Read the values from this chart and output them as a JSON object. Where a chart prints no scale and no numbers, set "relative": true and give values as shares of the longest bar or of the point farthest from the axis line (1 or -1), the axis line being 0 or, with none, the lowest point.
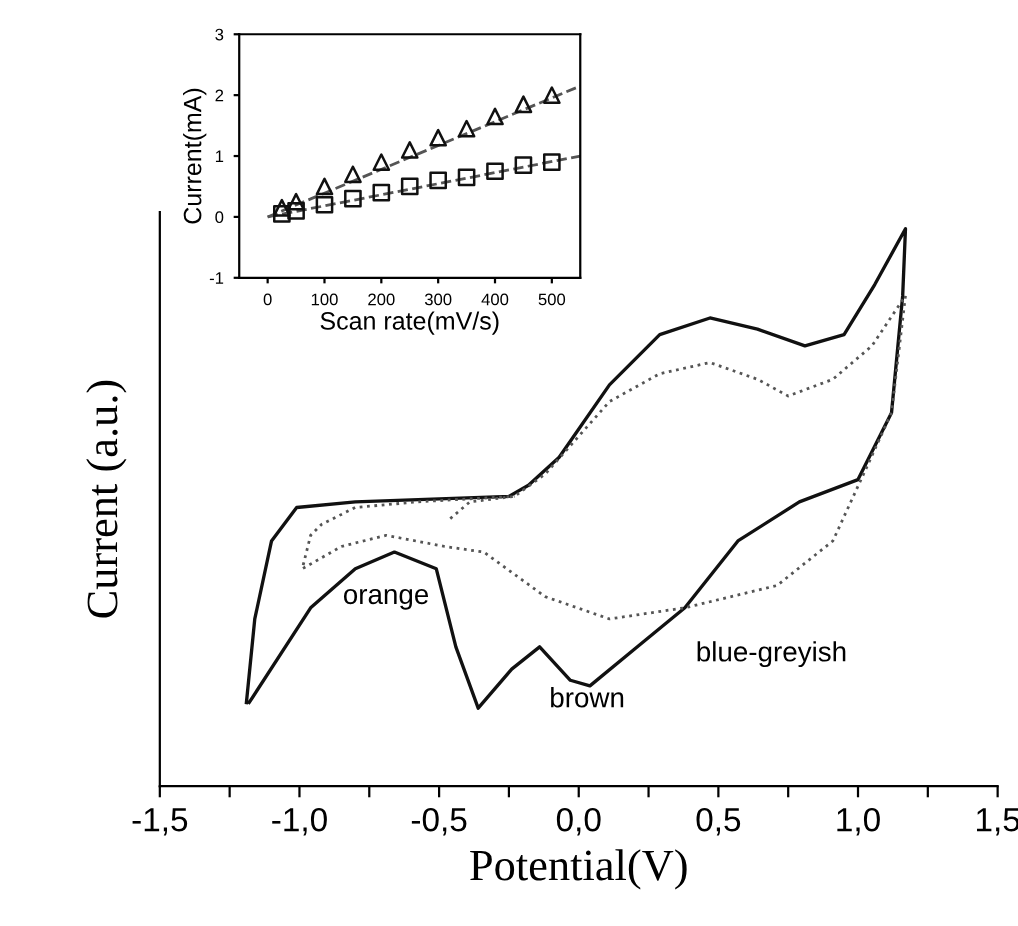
{
  "chart_data": [
    {
      "type": "line",
      "relative": true,
      "xlabel": "Potential(V)",
      "ylabel": "Current (a.u.)",
      "xlim": [
        -1.5,
        1.5
      ],
      "xticks": [
        {
          "value": -1.5,
          "label": "-1,5"
        },
        {
          "value": -1.25,
          "label": null
        },
        {
          "value": -1.0,
          "label": "-1,0"
        },
        {
          "value": -0.75,
          "label": null
        },
        {
          "value": -0.5,
          "label": "-0,5"
        },
        {
          "value": -0.25,
          "label": null
        },
        {
          "value": 0.0,
          "label": "0,0"
        },
        {
          "value": 0.25,
          "label": null
        },
        {
          "value": 0.5,
          "label": "0,5"
        },
        {
          "value": 0.75,
          "label": null
        },
        {
          "value": 1.0,
          "label": "1,0"
        },
        {
          "value": 1.25,
          "label": null
        },
        {
          "value": 1.5,
          "label": "1,5"
        }
      ],
      "tick_labels": "x",
      "grid": false,
      "legend": false,
      "series": [
        {
          "color": "#111111",
          "line_style": "solid",
          "x": [
            -1.19,
            -1.16,
            -1.1,
            -1.01,
            -0.8,
            -0.25,
            -0.18,
            -0.07,
            0.11,
            0.29,
            0.47,
            0.64,
            0.81,
            0.95,
            1.06,
            1.17,
            1.16,
            1.12,
            1.0,
            0.79,
            0.57,
            0.38,
            0.21,
            0.04,
            -0.03,
            -0.14,
            -0.24,
            -0.36,
            -0.44,
            -0.51,
            -0.66,
            -0.8,
            -0.96,
            -1.18
          ],
          "values": [
            0.15,
            0.3,
            0.44,
            0.5,
            0.51,
            0.52,
            0.54,
            0.59,
            0.72,
            0.81,
            0.84,
            0.82,
            0.79,
            0.81,
            0.9,
            1.0,
            0.88,
            0.67,
            0.55,
            0.51,
            0.44,
            0.32,
            0.25,
            0.18,
            0.19,
            0.25,
            0.21,
            0.14,
            0.25,
            0.39,
            0.42,
            0.39,
            0.32,
            0.15
          ]
        },
        {
          "color": "#555555",
          "line_style": "dotted",
          "x": [
            -0.46,
            -0.39,
            -0.23,
            -0.12,
            0.11,
            0.29,
            0.47,
            0.64,
            0.75,
            0.91,
            1.05,
            1.17,
            1.12,
            1.02,
            0.91,
            0.71,
            0.38,
            0.11,
            -0.12,
            -0.34,
            -0.48,
            -0.69,
            -0.85,
            -0.99,
            -0.96,
            -0.92,
            -0.8,
            -0.58,
            -0.23
          ],
          "values": [
            0.48,
            0.51,
            0.52,
            0.56,
            0.69,
            0.74,
            0.76,
            0.73,
            0.7,
            0.73,
            0.79,
            0.88,
            0.67,
            0.56,
            0.44,
            0.36,
            0.32,
            0.3,
            0.34,
            0.42,
            0.43,
            0.45,
            0.43,
            0.39,
            0.45,
            0.47,
            0.5,
            0.51,
            0.52
          ]
        }
      ],
      "annotations": [
        "orange",
        "brown",
        "blue-greyish"
      ]
    },
    {
      "type": "scatter",
      "xlabel": "Scan rate(mV/s)",
      "ylabel": "Current(mA)",
      "xlim": [
        -50,
        550
      ],
      "ylim": [
        -1,
        3
      ],
      "xticks": [
        0,
        100,
        200,
        300,
        400,
        500
      ],
      "yticks": [
        -1,
        0,
        1,
        2,
        3
      ],
      "grid": false,
      "legend": false,
      "series": [
        {
          "color": "#111111",
          "marker": "triangle",
          "x": [
            25,
            50,
            100,
            150,
            200,
            250,
            300,
            350,
            400,
            450,
            500
          ],
          "values": [
            0.15,
            0.25,
            0.5,
            0.7,
            0.9,
            1.1,
            1.3,
            1.45,
            1.65,
            1.85,
            2.0
          ]
        },
        {
          "color": "#111111",
          "marker": "square",
          "x": [
            25,
            50,
            100,
            150,
            200,
            250,
            300,
            350,
            400,
            450,
            500
          ],
          "values": [
            0.05,
            0.1,
            0.2,
            0.3,
            0.4,
            0.5,
            0.6,
            0.65,
            0.75,
            0.85,
            0.9
          ]
        },
        {
          "type": "line",
          "color": "#555555",
          "line_style": "dashed",
          "marker": "none",
          "x": [
            0,
            550
          ],
          "values": [
            0.0,
            2.15
          ]
        },
        {
          "type": "line",
          "color": "#555555",
          "line_style": "dashed",
          "marker": "none",
          "x": [
            0,
            550
          ],
          "values": [
            0.0,
            1.0
          ]
        }
      ]
    }
  ]
}
